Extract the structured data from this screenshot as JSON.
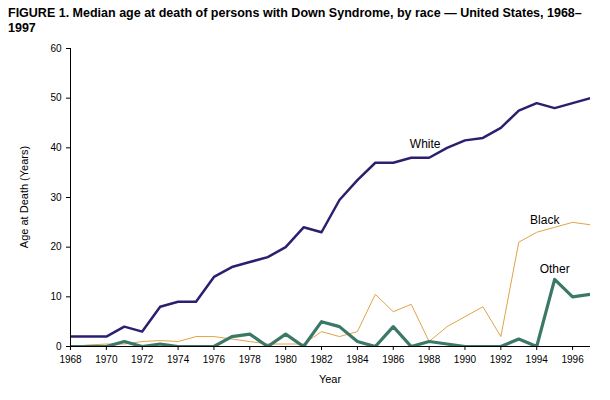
{
  "chart_data": {
    "type": "line",
    "title": "FIGURE 1. Median age at death of persons with Down Syndrome, by race — United States, 1968–1997",
    "x_label": "Year",
    "y_label": "Age at Death (Years)",
    "x": [
      1968,
      1969,
      1970,
      1971,
      1972,
      1973,
      1974,
      1975,
      1976,
      1977,
      1978,
      1979,
      1980,
      1981,
      1982,
      1983,
      1984,
      1985,
      1986,
      1987,
      1988,
      1989,
      1990,
      1991,
      1992,
      1993,
      1994,
      1995,
      1996,
      1997
    ],
    "series": [
      {
        "name": "White",
        "color": "#2b1f6f",
        "values": [
          2,
          2,
          2,
          4,
          3,
          8,
          9,
          9,
          14,
          16,
          17,
          18,
          20,
          24,
          23,
          29.5,
          33.5,
          37,
          37,
          38,
          38,
          40,
          41.5,
          42,
          44,
          47.5,
          49,
          48,
          49,
          50
        ]
      },
      {
        "name": "Black",
        "color": "#e0a448",
        "values": [
          0,
          0.3,
          0.5,
          0.5,
          1,
          1.2,
          1,
          2,
          2,
          1.5,
          1,
          0.5,
          0.5,
          0.5,
          3,
          2,
          3,
          10.5,
          7,
          8.5,
          1,
          4,
          6,
          8,
          2,
          21,
          23,
          24,
          25,
          24.5
        ]
      },
      {
        "name": "Other",
        "color": "#3b7868",
        "values": [
          0,
          0,
          0,
          1,
          0,
          0.5,
          0,
          0,
          0,
          2,
          2.5,
          0,
          2.5,
          0,
          5,
          4,
          1,
          0,
          4,
          0,
          1,
          0.5,
          0,
          0,
          0,
          1.5,
          0,
          13.5,
          10,
          10.5
        ]
      }
    ],
    "xlim": [
      1968,
      1997
    ],
    "xticks": [
      1968,
      1970,
      1972,
      1974,
      1976,
      1978,
      1980,
      1982,
      1984,
      1986,
      1988,
      1990,
      1992,
      1994,
      1996
    ],
    "ylim": [
      0,
      60
    ],
    "yticks": [
      0,
      10,
      20,
      30,
      40,
      50,
      60
    ],
    "grid": false
  }
}
